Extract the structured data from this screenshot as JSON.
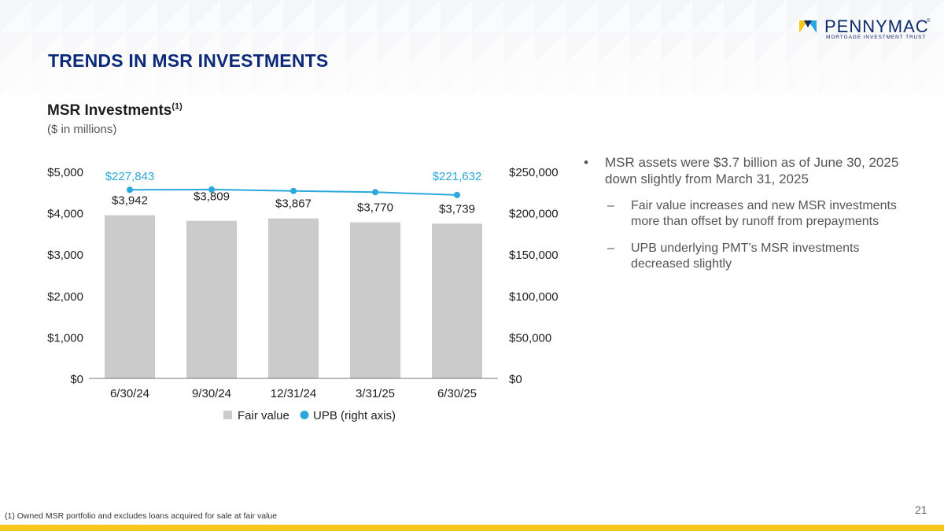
{
  "brand": {
    "name": "PENNYMAC",
    "reg": "®",
    "tagline": "MORTGAGE INVESTMENT TRUST",
    "color_navy": "#0c2a6e",
    "color_gold": "#f6c619",
    "color_blue": "#2aa8dc"
  },
  "page": {
    "title": "TRENDS IN MSR INVESTMENTS",
    "section_title": "MSR Investments",
    "section_sup": "(1)",
    "units": "($ in millions)",
    "footnote": "(1) Owned MSR portfolio and excludes loans acquired for sale at fair value",
    "page_number": "21"
  },
  "commentary": {
    "main_bullet": "MSR assets were $3.7 billion as of June 30, 2025 down slightly from March 31, 2025",
    "sub_bullets": [
      "Fair value increases and new MSR investments more than offset by runoff from prepayments",
      "UPB underlying PMT’s MSR investments decreased slightly"
    ]
  },
  "chart_data": {
    "type": "bar",
    "title": "MSR Investments",
    "categories": [
      "6/30/24",
      "9/30/24",
      "12/31/24",
      "3/31/25",
      "6/30/25"
    ],
    "series": [
      {
        "name": "Fair value",
        "type": "bar",
        "axis": "left",
        "color": "#cbcbcb",
        "values": [
          3942,
          3809,
          3867,
          3770,
          3739
        ],
        "labels": [
          "$3,942",
          "$3,809",
          "$3,867",
          "$3,770",
          "$3,739"
        ]
      },
      {
        "name": "UPB (right axis)",
        "type": "line",
        "axis": "right",
        "color": "#2aa8dc",
        "values": [
          227843,
          228200,
          226500,
          225000,
          221632
        ],
        "labels": [
          "$227,843",
          "",
          "",
          "",
          "$221,632"
        ]
      }
    ],
    "y_left": {
      "ylim": [
        0,
        5000
      ],
      "ticks": [
        0,
        1000,
        2000,
        3000,
        4000,
        5000
      ],
      "tick_labels": [
        "$0",
        "$1,000",
        "$2,000",
        "$3,000",
        "$4,000",
        "$5,000"
      ]
    },
    "y_right": {
      "ylim": [
        0,
        250000
      ],
      "ticks": [
        0,
        50000,
        100000,
        150000,
        200000,
        250000
      ],
      "tick_labels": [
        "$0",
        "$50,000",
        "$100,000",
        "$150,000",
        "$200,000",
        "$250,000"
      ]
    },
    "legend": [
      "Fair value",
      "UPB (right axis)"
    ],
    "legend_position": "bottom",
    "grid": false
  }
}
